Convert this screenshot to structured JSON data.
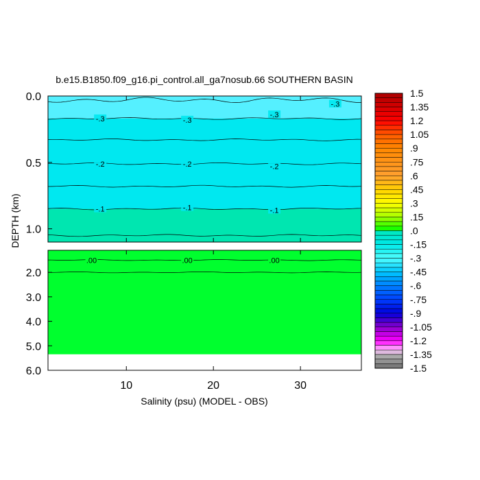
{
  "title": "b.e15.B1850.f09_g16.pi_control.all_ga7nosub.66 SOUTHERN BASIN",
  "xlabel": "Salinity (psu) (MODEL - OBS)",
  "ylabel": "DEPTH (km)",
  "colors": {
    "shallow_band": "#55f0ff",
    "main_upper": "#00e8f0",
    "lower_band": "#00e6b0",
    "deep_fill": "#00ff2e",
    "missing": "#ffffff",
    "contour_line": "#000000"
  },
  "chart_data": {
    "type": "contour",
    "x_range": [
      1,
      37
    ],
    "x_ticks": [
      10,
      20,
      30
    ],
    "x_tick_labels": [
      "10",
      "20",
      "30"
    ],
    "top_panel": {
      "y_range": [
        0.0,
        1.1
      ],
      "y_ticks": [
        0.0,
        0.5,
        1.0
      ],
      "y_tick_labels": [
        "0.0",
        "0.5",
        "1.0"
      ],
      "contours": [
        {
          "level": -0.35,
          "depth": 0.03
        },
        {
          "level": -0.3,
          "depth": 0.17
        },
        {
          "level": -0.25,
          "depth": 0.33
        },
        {
          "level": -0.2,
          "depth": 0.51
        },
        {
          "level": -0.15,
          "depth": 0.68
        },
        {
          "level": -0.1,
          "depth": 0.85
        },
        {
          "level": -0.05,
          "depth": 1.05
        }
      ],
      "contour_labels": [
        {
          "text": "-.3",
          "x": 7,
          "depth": 0.17
        },
        {
          "text": "-.3",
          "x": 17,
          "depth": 0.18
        },
        {
          "text": "-.3",
          "x": 27,
          "depth": 0.14
        },
        {
          "text": "-.3",
          "x": 34,
          "depth": 0.06
        },
        {
          "text": "-.2",
          "x": 7,
          "depth": 0.51
        },
        {
          "text": "-.2",
          "x": 17,
          "depth": 0.51
        },
        {
          "text": "-.2",
          "x": 27,
          "depth": 0.53
        },
        {
          "text": "-.1",
          "x": 7,
          "depth": 0.85
        },
        {
          "text": "-.1",
          "x": 17,
          "depth": 0.84
        },
        {
          "text": "-.1",
          "x": 27,
          "depth": 0.86
        }
      ]
    },
    "bottom_panel": {
      "y_range": [
        1.1,
        6.0
      ],
      "y_ticks": [
        2.0,
        3.0,
        4.0,
        5.0,
        6.0
      ],
      "y_tick_labels": [
        "2.0",
        "3.0",
        "4.0",
        "5.0",
        "6.0"
      ],
      "data_bottom_depth": 5.35,
      "contours": [
        {
          "level": 0.0,
          "depth": 1.5
        },
        {
          "level": -0.02,
          "depth": 2.0
        }
      ],
      "contour_labels": [
        {
          "text": ".00",
          "x": 6,
          "depth": 1.5
        },
        {
          "text": ".00",
          "x": 17,
          "depth": 1.5
        },
        {
          "text": ".00",
          "x": 27,
          "depth": 1.5
        }
      ]
    },
    "colorbar": {
      "min": -1.5,
      "max": 1.5,
      "step": 0.05,
      "labels": [
        "1.5",
        "1.35",
        "1.2",
        "1.05",
        ".9",
        ".75",
        ".6",
        ".45",
        ".3",
        ".15",
        ".0",
        "-.15",
        "-.3",
        "-.45",
        "-.6",
        "-.75",
        "-.9",
        "-1.05",
        "-1.2",
        "-1.35",
        "-1.5"
      ],
      "color_stops": [
        {
          "value": 1.5,
          "color": "#aa0000"
        },
        {
          "value": 1.2,
          "color": "#ff0000"
        },
        {
          "value": 1.05,
          "color": "#ff5a00"
        },
        {
          "value": 0.9,
          "color": "#ff8800"
        },
        {
          "value": 0.6,
          "color": "#ffa030"
        },
        {
          "value": 0.45,
          "color": "#ffd000"
        },
        {
          "value": 0.3,
          "color": "#ffff00"
        },
        {
          "value": 0.15,
          "color": "#a8ff00"
        },
        {
          "value": 0.0,
          "color": "#00ff00"
        },
        {
          "value": -0.01,
          "color": "#00e8c0"
        },
        {
          "value": -0.15,
          "color": "#00e8e8"
        },
        {
          "value": -0.3,
          "color": "#50ffff"
        },
        {
          "value": -0.45,
          "color": "#00c8ff"
        },
        {
          "value": -0.6,
          "color": "#0080ff"
        },
        {
          "value": -0.75,
          "color": "#0040ff"
        },
        {
          "value": -0.9,
          "color": "#0000dd"
        },
        {
          "value": -1.05,
          "color": "#8800cc"
        },
        {
          "value": -1.2,
          "color": "#ff00ff"
        },
        {
          "value": -1.3,
          "color": "#ffc0ff"
        },
        {
          "value": -1.36,
          "color": "#b0b0b0"
        },
        {
          "value": -1.5,
          "color": "#707070"
        }
      ]
    }
  }
}
